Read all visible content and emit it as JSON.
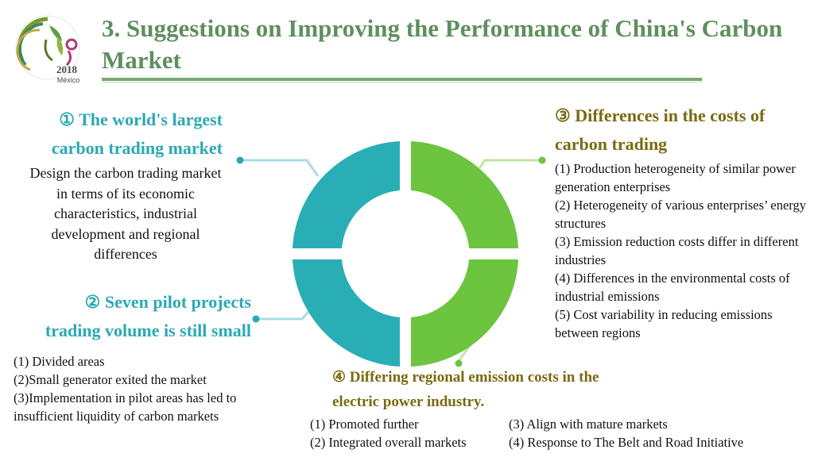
{
  "header": {
    "title": "3. Suggestions on Improving the Performance of China's Carbon Market",
    "logo": {
      "icon": "congress-logo-icon",
      "year": "2018",
      "place": "México"
    }
  },
  "sections": {
    "s1": {
      "heading_line1": "① The world's largest",
      "heading_line2": "carbon trading market",
      "body": "Design the carbon trading market in terms of its economic characteristics, industrial development and regional differences"
    },
    "s2": {
      "heading_line1": "② Seven pilot projects",
      "heading_line2": "trading volume is still small",
      "items": [
        "(1) Divided areas",
        "(2)Small generator exited the market",
        "(3)Implementation in pilot areas has led to insufficient liquidity of carbon markets"
      ]
    },
    "s3": {
      "heading_line1": "③ Differences in the costs of",
      "heading_line2": "carbon trading",
      "items": [
        "(1) Production heterogeneity of similar power generation enterprises",
        "(2) Heterogeneity of various enterprises’ energy structures",
        "(3) Emission reduction costs differ in different industries",
        "(4) Differences in the environmental costs of industrial emissions",
        "(5) Cost variability in reducing emissions between regions"
      ]
    },
    "s4": {
      "heading_line1": "④ Differing regional emission costs in the",
      "heading_line2": "electric power industry.",
      "items": [
        "(1) Promoted further",
        "(3) Align with mature markets",
        "(2) Integrated overall markets",
        "(4) Response to The Belt and Road Initiative"
      ]
    }
  },
  "colors": {
    "title": "#5f8f5d",
    "teal": "#2aa9b4",
    "green": "#6cc43f",
    "olive": "#7a6a10",
    "connector_teal": "#a8dde2",
    "connector_green": "#c2e6a4"
  }
}
